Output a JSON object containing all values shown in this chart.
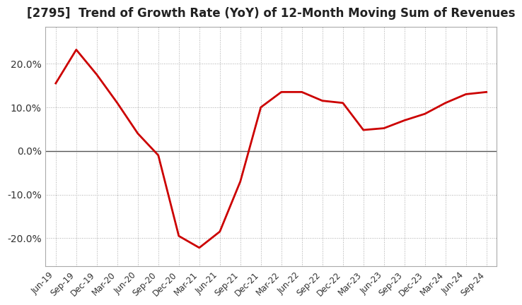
{
  "title": "[2795]  Trend of Growth Rate (YoY) of 12-Month Moving Sum of Revenues",
  "title_fontsize": 12,
  "line_color": "#cc0000",
  "background_color": "#ffffff",
  "grid_color": "#aaaaaa",
  "ylim": [
    -0.265,
    0.285
  ],
  "yticks": [
    -0.2,
    -0.1,
    0.0,
    0.1,
    0.2
  ],
  "ytick_labels": [
    "-20.0%",
    "-10.0%",
    "0.0%",
    "10.0%",
    "20.0%"
  ],
  "x_labels": [
    "Jun-19",
    "Sep-19",
    "Dec-19",
    "Mar-20",
    "Jun-20",
    "Sep-20",
    "Dec-20",
    "Mar-21",
    "Jun-21",
    "Sep-21",
    "Dec-21",
    "Mar-22",
    "Jun-22",
    "Sep-22",
    "Dec-22",
    "Mar-23",
    "Jun-23",
    "Sep-23",
    "Dec-23",
    "Mar-24",
    "Jun-24",
    "Sep-24"
  ],
  "values": [
    0.155,
    0.232,
    0.175,
    0.11,
    0.04,
    -0.01,
    -0.195,
    -0.222,
    -0.185,
    -0.07,
    0.1,
    0.135,
    0.135,
    0.115,
    0.11,
    0.048,
    0.052,
    0.07,
    0.085,
    0.11,
    0.13,
    0.135
  ]
}
